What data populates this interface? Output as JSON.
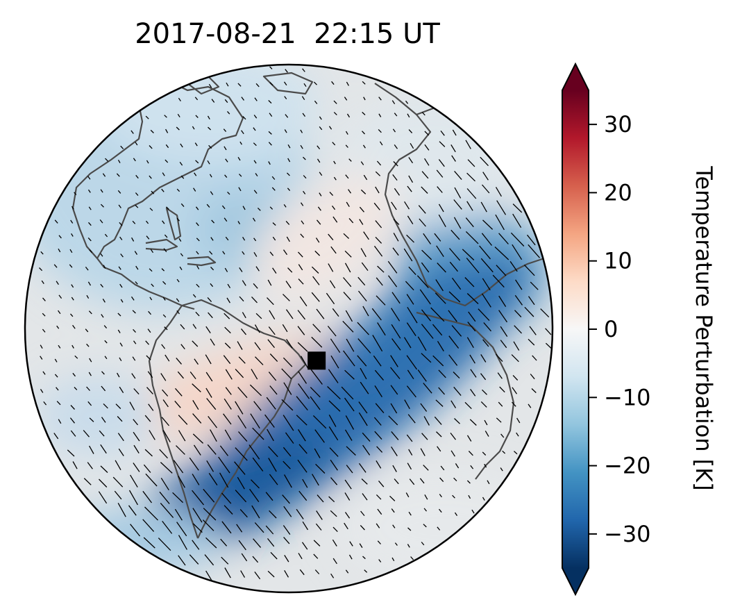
{
  "title": "2017-08-21  22:15 UT",
  "colorbar": {
    "label": "Temperature Perturbation [K]",
    "vmin": -35,
    "vmax": 35,
    "ticks": [
      {
        "value": 30,
        "label": "30"
      },
      {
        "value": 20,
        "label": "20"
      },
      {
        "value": 10,
        "label": "10"
      },
      {
        "value": 0,
        "label": "0"
      },
      {
        "value": -10,
        "label": "−10"
      },
      {
        "value": -20,
        "label": "−20"
      },
      {
        "value": -30,
        "label": "−30"
      }
    ],
    "extend": "both",
    "colormap": "RdBu_r",
    "colors": [
      "#053061",
      "#2166ac",
      "#4393c3",
      "#92c5de",
      "#d1e5f0",
      "#f7f7f7",
      "#fddbc7",
      "#f4a582",
      "#d6604d",
      "#b2182b",
      "#67001f"
    ]
  },
  "map": {
    "projection": "orthographic",
    "center": {
      "lon": -40,
      "lat": 0
    },
    "coastline_color": "#4a4a4a",
    "marker": {
      "name": "black square marker",
      "lon": -38,
      "lat": -7,
      "color": "#000000"
    },
    "field": "temperature perturbation with wind vectors"
  }
}
